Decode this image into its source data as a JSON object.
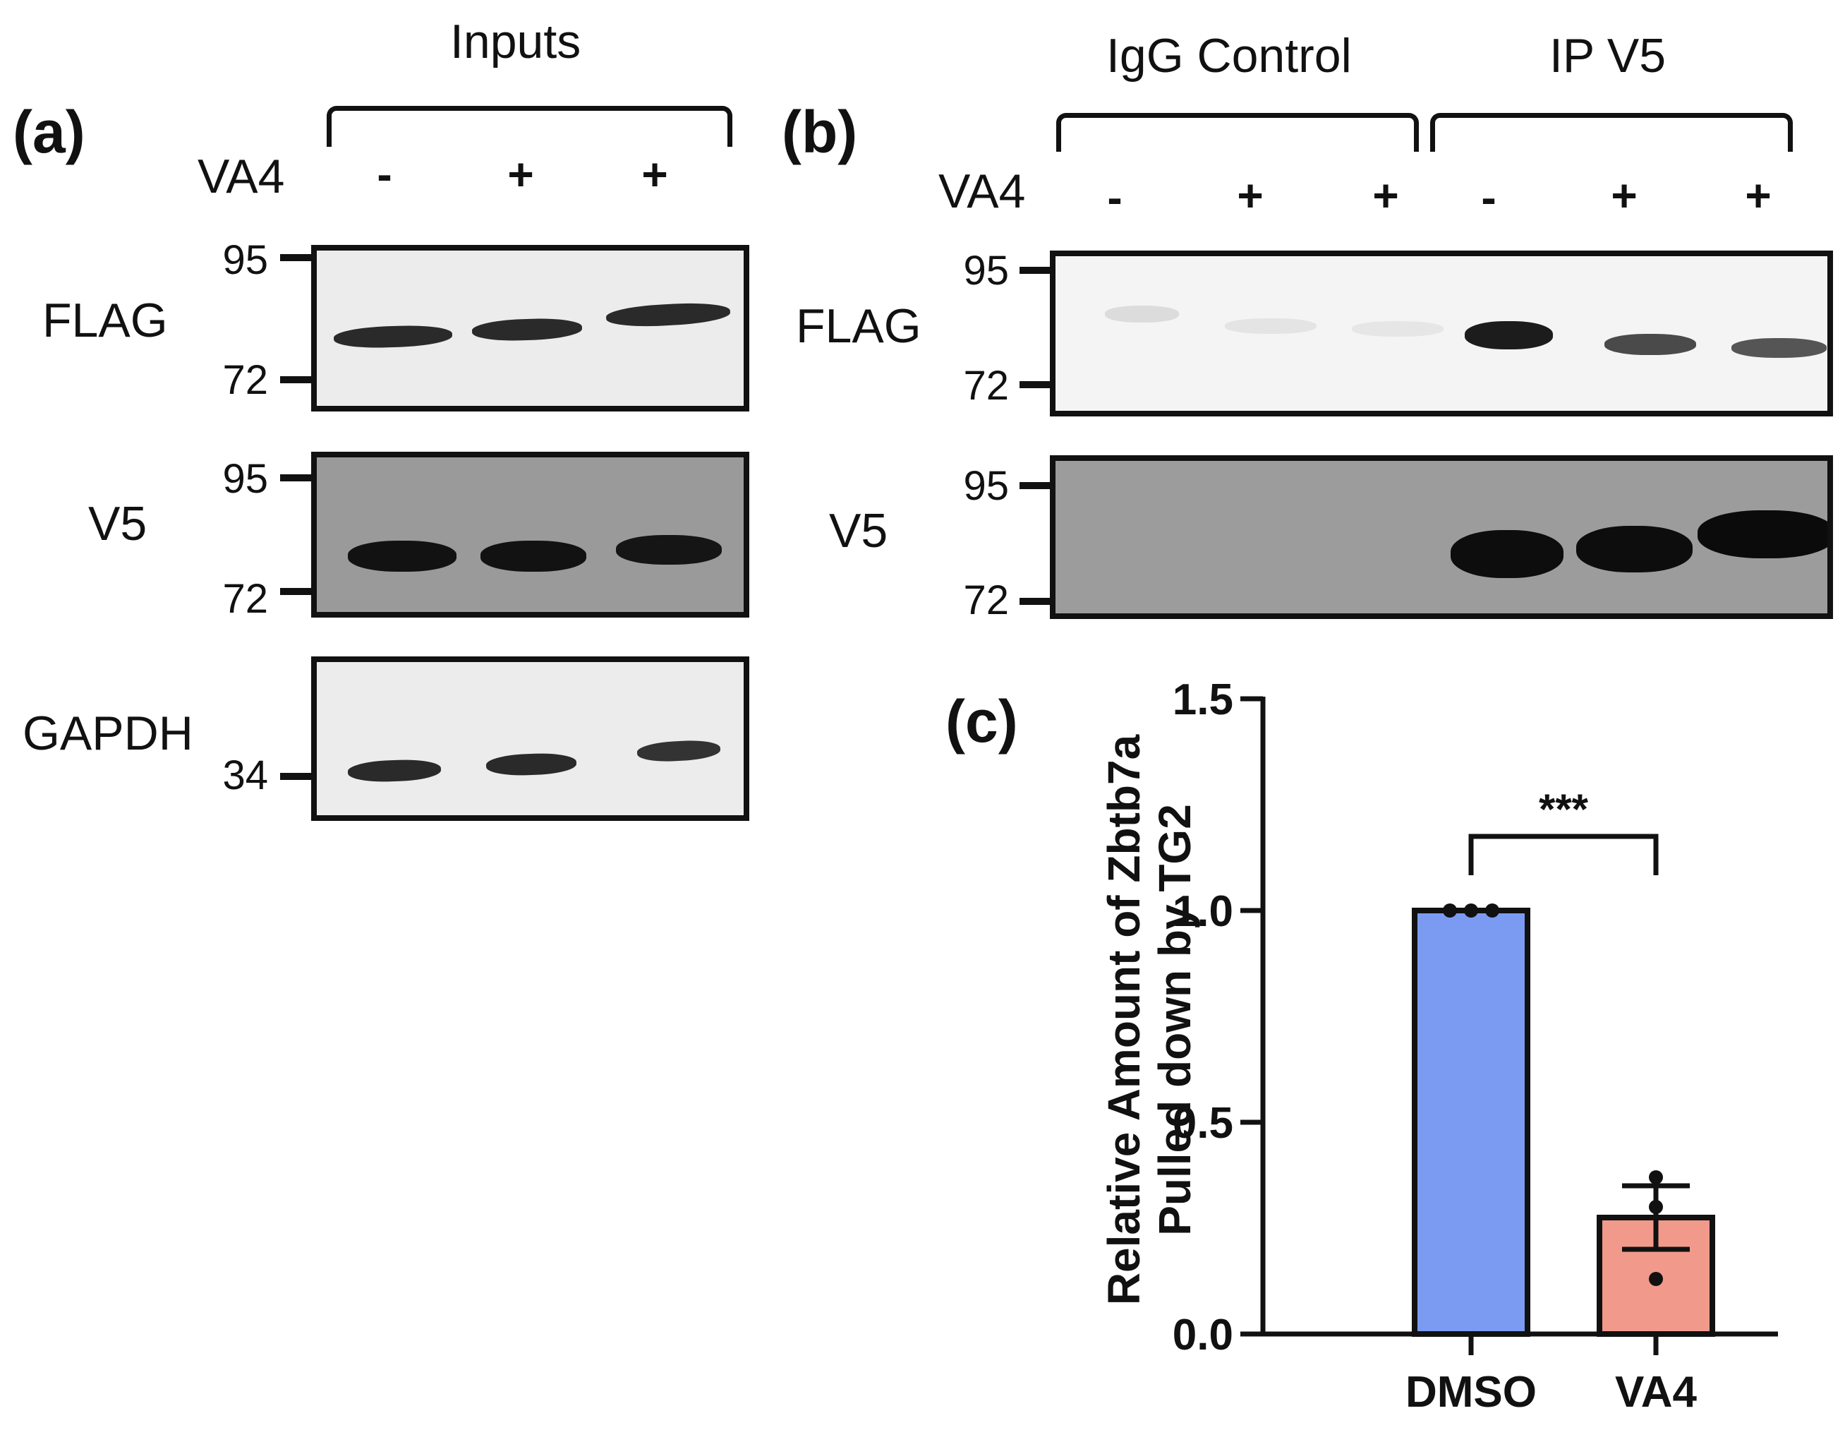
{
  "panel_a": {
    "label": "(a)",
    "group_label": "Inputs",
    "treatment_label": "VA4",
    "lane_signs": [
      "-",
      "+",
      "+"
    ],
    "blots": [
      {
        "name": "FLAG",
        "markers": [
          "95",
          "72"
        ]
      },
      {
        "name": "V5",
        "markers": [
          "95",
          "72"
        ]
      },
      {
        "name": "GAPDH",
        "markers": [
          "34"
        ]
      }
    ]
  },
  "panel_b": {
    "label": "(b)",
    "group_labels": [
      "IgG Control",
      "IP V5"
    ],
    "treatment_label": "VA4",
    "lane_signs": [
      "-",
      "+",
      "+",
      "-",
      "+",
      "+"
    ],
    "blots": [
      {
        "name": "FLAG",
        "markers": [
          "95",
          "72"
        ]
      },
      {
        "name": "V5",
        "markers": [
          "95",
          "72"
        ]
      }
    ]
  },
  "chart_data": {
    "type": "bar",
    "panel_label": "(c)",
    "categories": [
      "DMSO",
      "VA4"
    ],
    "values": [
      1.0,
      0.275
    ],
    "errors": [
      0.0,
      0.075
    ],
    "points": [
      [
        1.0,
        1.0,
        1.0
      ],
      [
        0.37,
        0.3,
        0.13
      ]
    ],
    "bar_colors": [
      "#7b9bf2",
      "#f19a8b"
    ],
    "ylabel_line1": "Relative Amount of Zbtb7a",
    "ylabel_line2": "Pulled down by TG2",
    "ylim": [
      0,
      1.5
    ],
    "yticks": [
      "0.0",
      "0.5",
      "1.0",
      "1.5"
    ],
    "significance": "***"
  }
}
